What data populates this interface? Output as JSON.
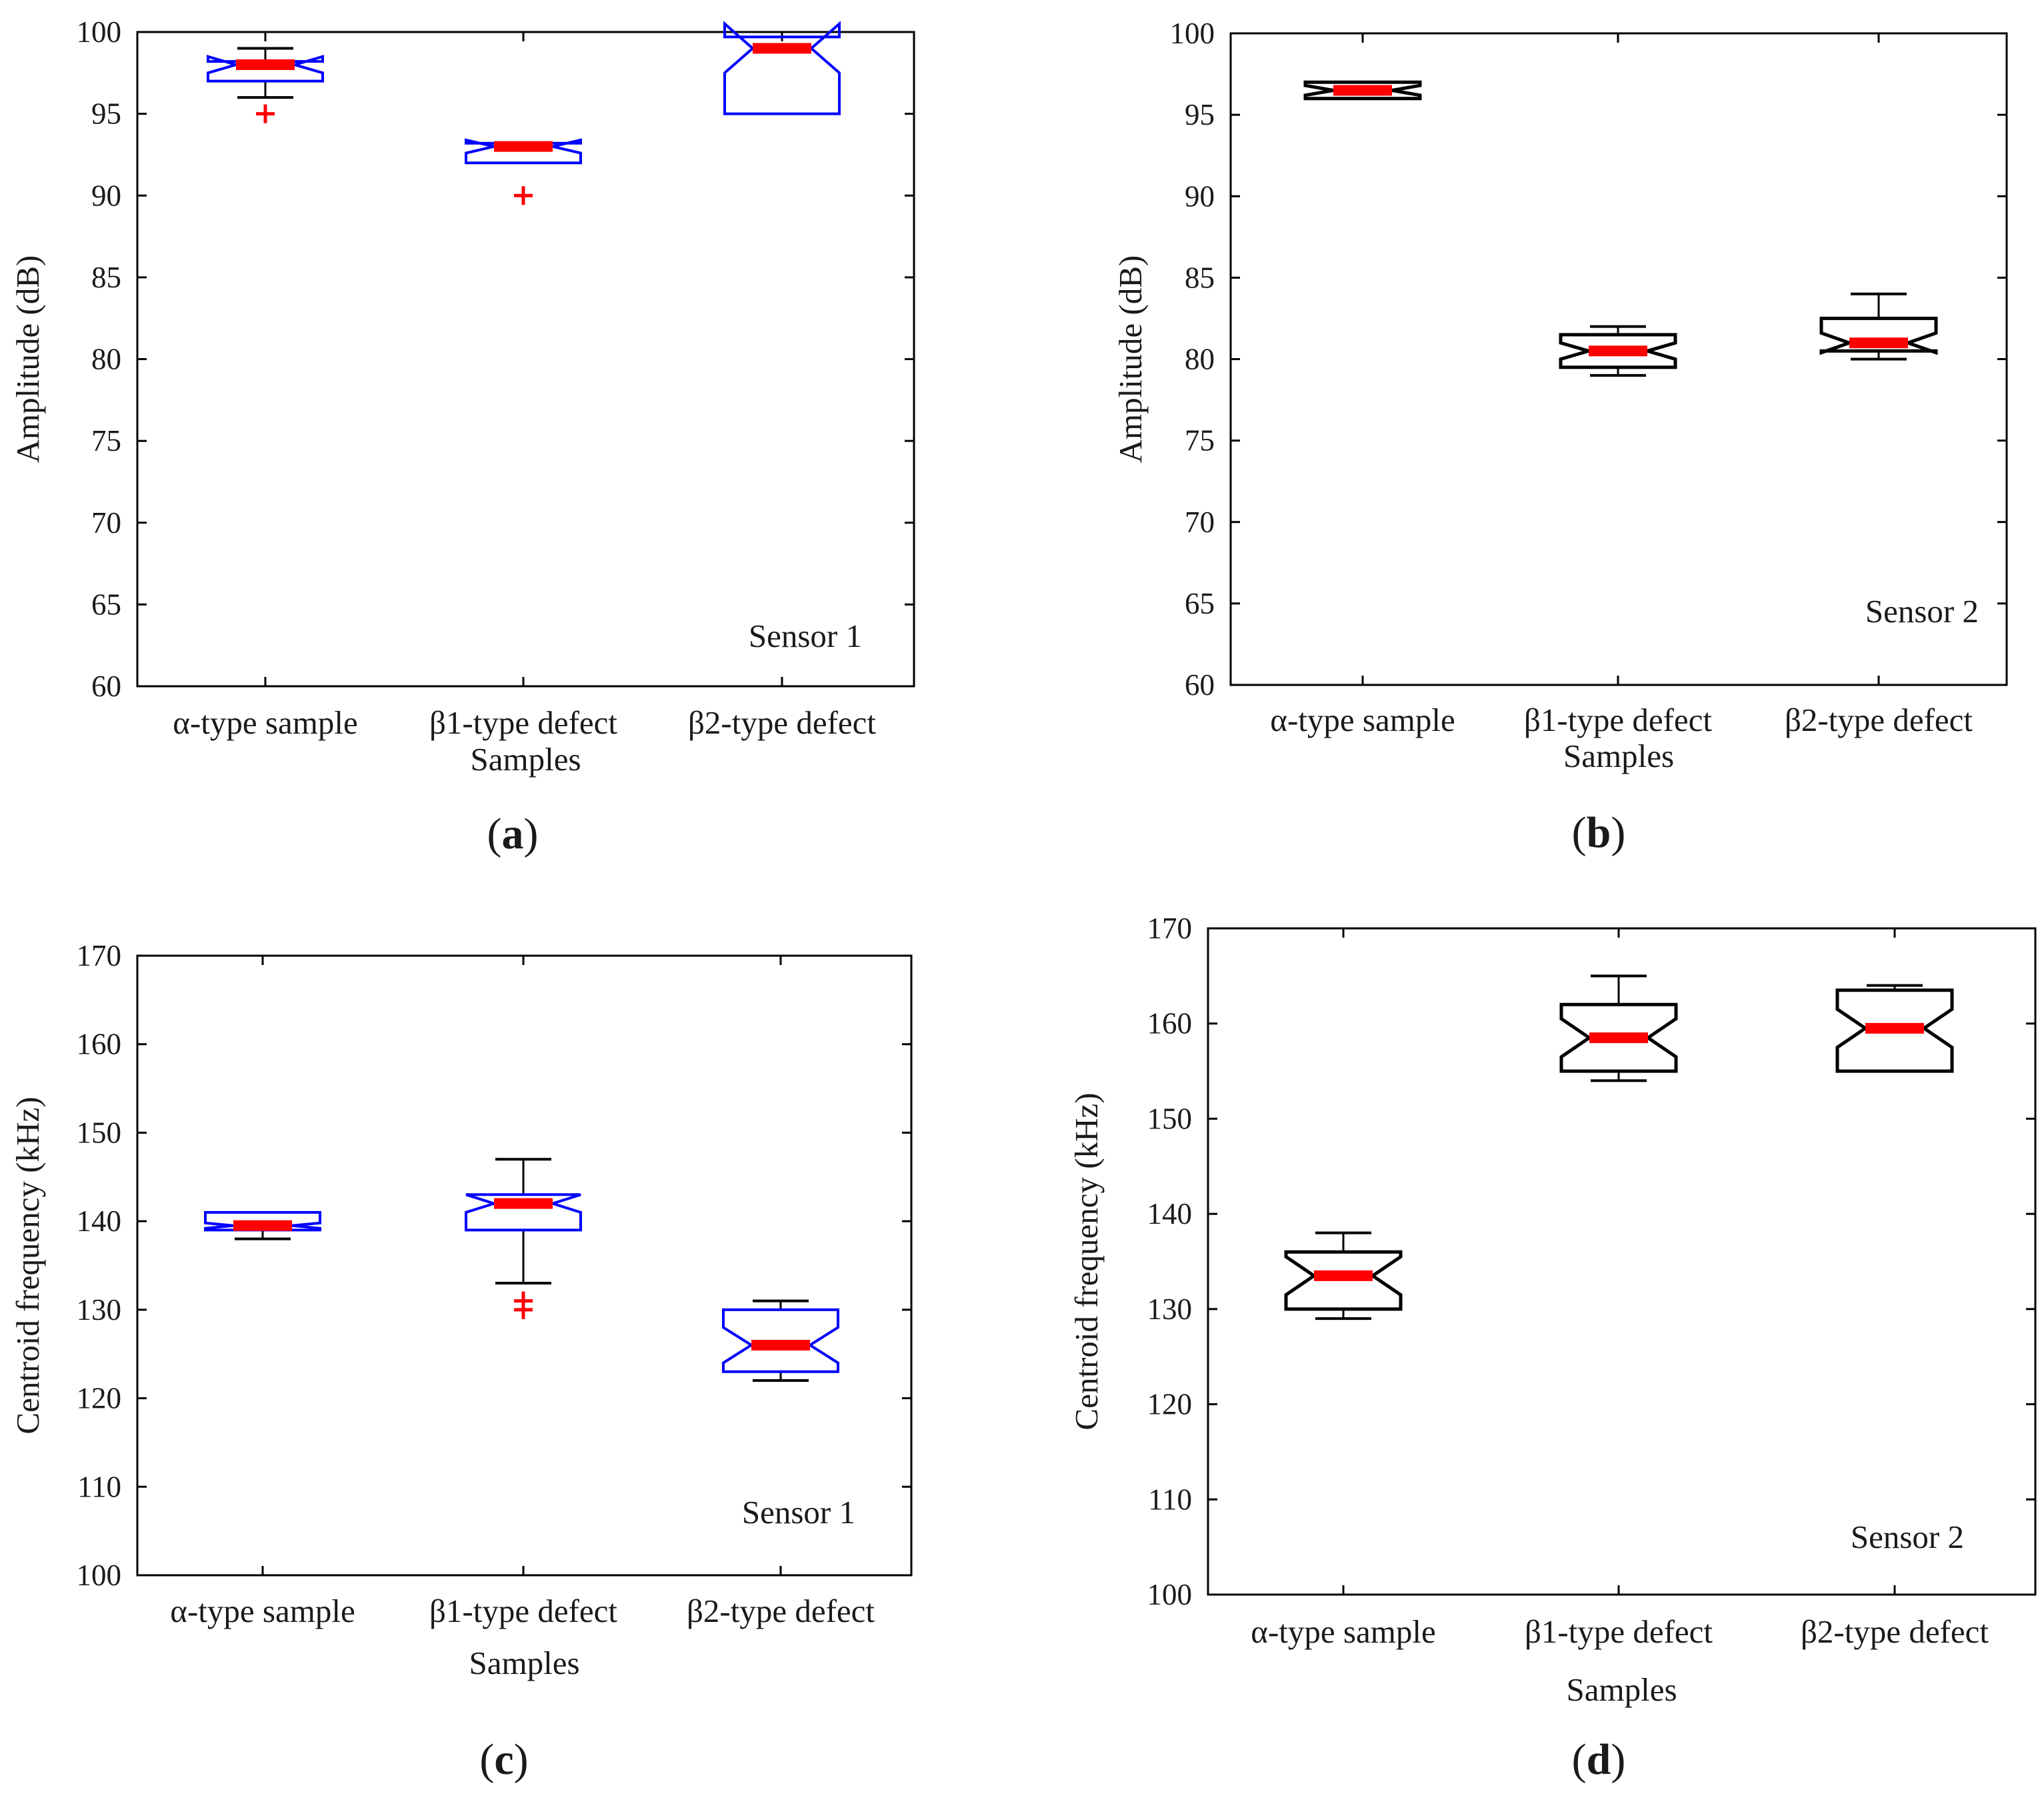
{
  "colors": {
    "box_blue": "#0000ff",
    "box_black": "#000000",
    "median": "#ff0000",
    "outlier": "#ff0000",
    "axes": "#000000"
  },
  "chart_data": [
    {
      "type": "boxplot",
      "panel": "a",
      "ylabel": "Amplitude (dB)",
      "xlabel": "Samples",
      "sensor": "Sensor 1",
      "ylim": [
        60,
        100
      ],
      "yticks": [
        "60",
        "65",
        "70",
        "75",
        "80",
        "85",
        "90",
        "95",
        "100"
      ],
      "categories": [
        "α-type sample",
        "β1-type defect",
        "β2-type defect"
      ],
      "box_color": "blue",
      "notched": true,
      "boxes": [
        {
          "whisker_low": 96,
          "q1": 97,
          "median": 98,
          "q3": 98.2,
          "whisker_high": 99,
          "notch_low": 97.5,
          "notch_high": 98.5,
          "outliers": [
            95
          ]
        },
        {
          "whisker_low": 92,
          "q1": 92,
          "median": 93,
          "q3": 93.2,
          "whisker_high": 93.2,
          "notch_low": 92.6,
          "notch_high": 93.4,
          "outliers": [
            90
          ]
        },
        {
          "whisker_low": 95,
          "q1": 95,
          "median": 99,
          "q3": 99.7,
          "whisker_high": 99.7,
          "notch_low": 97.5,
          "notch_high": 100.5,
          "outliers": []
        }
      ]
    },
    {
      "type": "boxplot",
      "panel": "b",
      "ylabel": "Amplitude (dB)",
      "xlabel": "Samples",
      "sensor": "Sensor 2",
      "ylim": [
        60,
        100
      ],
      "yticks": [
        "60",
        "65",
        "70",
        "75",
        "80",
        "85",
        "90",
        "95",
        "100"
      ],
      "categories": [
        "α-type sample",
        "β1-type defect",
        "β2-type defect"
      ],
      "box_color": "black",
      "notched": true,
      "boxes": [
        {
          "whisker_low": 96,
          "q1": 96,
          "median": 96.5,
          "q3": 97,
          "whisker_high": 97,
          "notch_low": 96.2,
          "notch_high": 96.8,
          "outliers": []
        },
        {
          "whisker_low": 79,
          "q1": 79.5,
          "median": 80.5,
          "q3": 81.5,
          "whisker_high": 82,
          "notch_low": 80,
          "notch_high": 81,
          "outliers": []
        },
        {
          "whisker_low": 80,
          "q1": 80.5,
          "median": 81,
          "q3": 82.5,
          "whisker_high": 84,
          "notch_low": 80.4,
          "notch_high": 81.6,
          "outliers": []
        }
      ]
    },
    {
      "type": "boxplot",
      "panel": "c",
      "ylabel": "Centroid frequency (kHz)",
      "xlabel": "Samples",
      "sensor": "Sensor 1",
      "ylim": [
        100,
        170
      ],
      "yticks": [
        "100",
        "110",
        "120",
        "130",
        "140",
        "150",
        "160",
        "170"
      ],
      "categories": [
        "α-type sample",
        "β1-type defect",
        "β2-type defect"
      ],
      "box_color": "blue",
      "notched": true,
      "boxes": [
        {
          "whisker_low": 138,
          "q1": 139,
          "median": 139.5,
          "q3": 141,
          "whisker_high": 141,
          "notch_low": 139.2,
          "notch_high": 139.8,
          "outliers": []
        },
        {
          "whisker_low": 133,
          "q1": 139,
          "median": 142,
          "q3": 143,
          "whisker_high": 147,
          "notch_low": 141,
          "notch_high": 143,
          "outliers": [
            130,
            131
          ]
        },
        {
          "whisker_low": 122,
          "q1": 123,
          "median": 126,
          "q3": 130,
          "whisker_high": 131,
          "notch_low": 124,
          "notch_high": 128,
          "outliers": []
        }
      ]
    },
    {
      "type": "boxplot",
      "panel": "d",
      "ylabel": "Centroid frequency (kHz)",
      "xlabel": "Samples",
      "sensor": "Sensor 2",
      "ylim": [
        100,
        170
      ],
      "yticks": [
        "100",
        "110",
        "120",
        "130",
        "140",
        "150",
        "160",
        "170"
      ],
      "categories": [
        "α-type sample",
        "β1-type defect",
        "β2-type defect"
      ],
      "box_color": "black",
      "notched": true,
      "boxes": [
        {
          "whisker_low": 129,
          "q1": 130,
          "median": 133.5,
          "q3": 136,
          "whisker_high": 138,
          "notch_low": 131.5,
          "notch_high": 135.5,
          "outliers": []
        },
        {
          "whisker_low": 154,
          "q1": 155,
          "median": 158.5,
          "q3": 162,
          "whisker_high": 165,
          "notch_low": 156.5,
          "notch_high": 160.5,
          "outliers": []
        },
        {
          "whisker_low": 155,
          "q1": 155,
          "median": 159.5,
          "q3": 163.5,
          "whisker_high": 164,
          "notch_low": 157.5,
          "notch_high": 161.5,
          "outliers": []
        }
      ]
    }
  ],
  "panel_labels": [
    "a",
    "b",
    "c",
    "d"
  ]
}
